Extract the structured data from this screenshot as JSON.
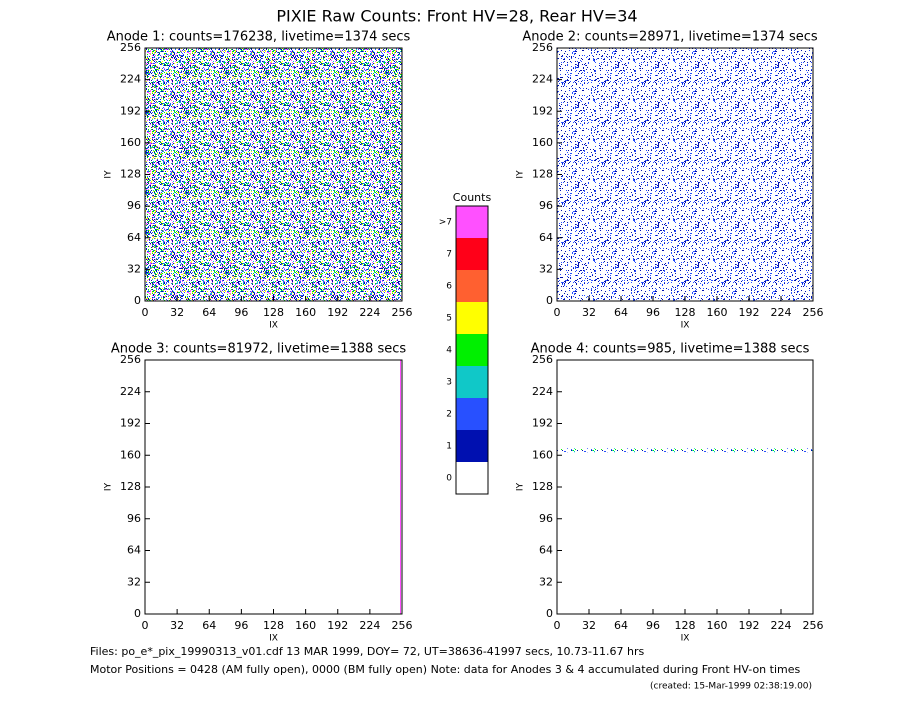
{
  "title": "PIXIE Raw Counts:  Front HV=28, Rear HV=34",
  "chart_data": [
    {
      "type": "heatmap",
      "title": "Anode 1: counts=176238, livetime=1374 secs",
      "xlabel": "IX",
      "ylabel": "IY",
      "xlim": [
        0,
        256
      ],
      "ylim": [
        0,
        256
      ],
      "xticks": [
        0,
        32,
        64,
        96,
        128,
        160,
        192,
        224,
        256
      ],
      "yticks": [
        0,
        32,
        64,
        96,
        128,
        160,
        192,
        224,
        256
      ]
    },
    {
      "type": "heatmap",
      "title": "Anode 2: counts=28971, livetime=1374 secs",
      "xlabel": "IX",
      "ylabel": "IY",
      "xlim": [
        0,
        256
      ],
      "ylim": [
        0,
        256
      ],
      "xticks": [
        0,
        32,
        64,
        96,
        128,
        160,
        192,
        224,
        256
      ],
      "yticks": [
        0,
        32,
        64,
        96,
        128,
        160,
        192,
        224,
        256
      ]
    },
    {
      "type": "heatmap",
      "title": "Anode 3: counts=81972, livetime=1388 secs",
      "xlabel": "IX",
      "ylabel": "IY",
      "xlim": [
        0,
        256
      ],
      "ylim": [
        0,
        256
      ],
      "xticks": [
        0,
        32,
        64,
        96,
        128,
        160,
        192,
        224,
        256
      ],
      "yticks": [
        0,
        32,
        64,
        96,
        128,
        160,
        192,
        224,
        256
      ]
    },
    {
      "type": "heatmap",
      "title": "Anode 4: counts=985, livetime=1388 secs",
      "xlabel": "IX",
      "ylabel": "IY",
      "xlim": [
        0,
        256
      ],
      "ylim": [
        0,
        256
      ],
      "xticks": [
        0,
        32,
        64,
        96,
        128,
        160,
        192,
        224,
        256
      ],
      "yticks": [
        0,
        32,
        64,
        96,
        128,
        160,
        192,
        224,
        256
      ]
    }
  ],
  "colorbar": {
    "title": "Counts",
    "labels": [
      "0",
      "1",
      "2",
      "3",
      "4",
      "5",
      "6",
      "7",
      ">7"
    ],
    "colors": [
      "#ffffff",
      "#0010b0",
      "#2850ff",
      "#10c8c8",
      "#00f000",
      "#ffff00",
      "#ff6030",
      "#ff0018",
      "#ff50ff"
    ]
  },
  "footer": {
    "files": "Files: po_e*_pix_19990313_v01.cdf    13 MAR 1999, DOY= 72, UT=38636-41997 secs, 10.73-11.67 hrs",
    "motor": "Motor Positions = 0428 (AM fully open), 0000 (BM fully open)    Note: data for Anodes 3 & 4 accumulated during Front HV-on times",
    "created": "(created: 15-Mar-1999 02:38:19.00)"
  }
}
